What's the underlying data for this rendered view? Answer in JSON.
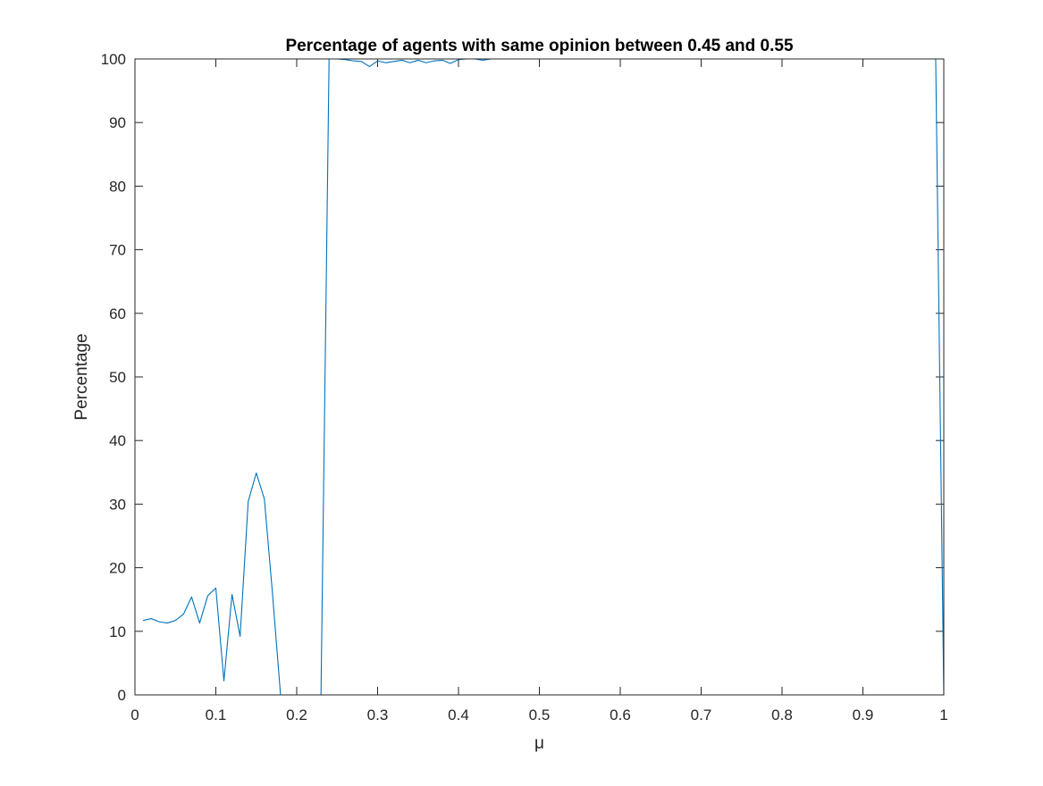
{
  "chart_data": {
    "type": "line",
    "title": "Percentage of agents with same opinion between 0.45 and 0.55",
    "xlabel": "μ",
    "ylabel": "Percentage",
    "xlim": [
      0,
      1
    ],
    "ylim": [
      0,
      100
    ],
    "xticks": [
      "0",
      "0.1",
      "0.2",
      "0.3",
      "0.4",
      "0.5",
      "0.6",
      "0.7",
      "0.8",
      "0.9",
      "1"
    ],
    "yticks": [
      "0",
      "10",
      "20",
      "30",
      "40",
      "50",
      "60",
      "70",
      "80",
      "90",
      "100"
    ],
    "grid": false,
    "box": true,
    "line_color": "#0072BD",
    "series": [
      {
        "x": [
          0.01,
          0.02,
          0.03,
          0.04,
          0.05,
          0.06,
          0.07,
          0.08,
          0.09,
          0.1,
          0.11,
          0.12,
          0.13,
          0.14,
          0.15,
          0.16,
          0.17,
          0.18,
          0.19,
          0.2,
          0.21,
          0.22,
          0.23,
          0.24,
          0.25,
          0.26,
          0.27,
          0.28,
          0.29,
          0.3,
          0.31,
          0.32,
          0.33,
          0.34,
          0.35,
          0.36,
          0.37,
          0.38,
          0.39,
          0.4,
          0.41,
          0.42,
          0.43,
          0.44,
          0.45,
          0.5,
          0.6,
          0.7,
          0.8,
          0.9,
          0.95,
          0.98,
          0.99,
          1.0
        ],
        "values": [
          11.7,
          12.0,
          11.5,
          11.3,
          11.7,
          12.7,
          15.4,
          11.3,
          15.6,
          16.8,
          2.2,
          15.8,
          9.2,
          30.4,
          34.9,
          30.8,
          16.0,
          0,
          0,
          0,
          0,
          0,
          0,
          100,
          100,
          99.9,
          99.7,
          99.6,
          98.8,
          99.7,
          99.4,
          99.6,
          99.8,
          99.4,
          99.8,
          99.4,
          99.7,
          99.8,
          99.3,
          99.9,
          100,
          100,
          99.8,
          100,
          100,
          100,
          100,
          100,
          100,
          100,
          100,
          100,
          100,
          0
        ]
      }
    ]
  }
}
